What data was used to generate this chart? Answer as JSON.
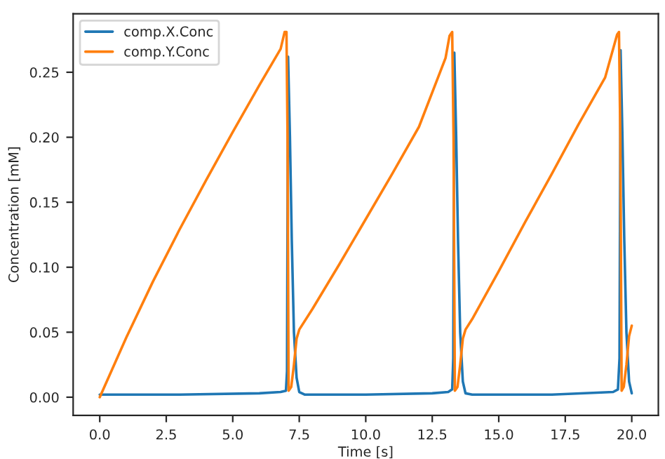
{
  "chart_data": {
    "type": "line",
    "xlabel": "Time [s]",
    "ylabel": "Concentration [mM]",
    "xlim": [
      -1,
      21
    ],
    "ylim": [
      -0.014,
      0.295
    ],
    "xticks": [
      {
        "value": 0,
        "label": "0.0"
      },
      2.5,
      {
        "value": 5,
        "label": "5.0"
      },
      7.5,
      {
        "value": 10,
        "label": "10.0"
      },
      12.5,
      {
        "value": 15,
        "label": "15.0"
      },
      17.5,
      {
        "value": 20,
        "label": "20.0"
      }
    ],
    "yticks": [
      {
        "value": 0,
        "label": "0.00"
      },
      0.05,
      {
        "value": 0.1,
        "label": "0.10"
      },
      0.15,
      {
        "value": 0.2,
        "label": "0.20"
      },
      0.25
    ],
    "grid": false,
    "legend": "top left",
    "series": [
      {
        "name": "comp.X.Conc",
        "color": "#1f77b4",
        "x": [
          0,
          0.1,
          3,
          6,
          6.8,
          7.0,
          7.04,
          7.08,
          7.15,
          7.22,
          7.3,
          7.4,
          7.5,
          7.7,
          10,
          12.5,
          13.1,
          13.25,
          13.29,
          13.33,
          13.4,
          13.47,
          13.55,
          13.65,
          13.75,
          14,
          17,
          19.3,
          19.48,
          19.54,
          19.58,
          19.65,
          19.72,
          19.8,
          19.9,
          20.0
        ],
        "values": [
          0.002,
          0.002,
          0.002,
          0.003,
          0.004,
          0.005,
          0.02,
          0.262,
          0.2,
          0.12,
          0.05,
          0.015,
          0.004,
          0.002,
          0.002,
          0.003,
          0.004,
          0.006,
          0.03,
          0.265,
          0.2,
          0.12,
          0.05,
          0.012,
          0.003,
          0.002,
          0.002,
          0.004,
          0.006,
          0.03,
          0.267,
          0.2,
          0.12,
          0.05,
          0.012,
          0.003
        ]
      },
      {
        "name": "comp.Y.Conc",
        "color": "#ff7f0e",
        "x": [
          0,
          1,
          2,
          3,
          4,
          5,
          6,
          6.8,
          6.95,
          7.02,
          7.06,
          7.1,
          7.2,
          7.3,
          7.4,
          7.5,
          8,
          9,
          10,
          11,
          12,
          13,
          13.15,
          13.25,
          13.3,
          13.35,
          13.45,
          13.55,
          13.65,
          13.75,
          14,
          15,
          16,
          17,
          18,
          19,
          19.45,
          19.52,
          19.57,
          19.62,
          19.7,
          19.8,
          19.9,
          20.0
        ],
        "values": [
          0,
          0.046,
          0.089,
          0.129,
          0.167,
          0.204,
          0.24,
          0.268,
          0.281,
          0.281,
          0.2,
          0.005,
          0.008,
          0.025,
          0.045,
          0.052,
          0.068,
          0.102,
          0.137,
          0.172,
          0.208,
          0.261,
          0.278,
          0.281,
          0.2,
          0.005,
          0.008,
          0.025,
          0.045,
          0.052,
          0.06,
          0.097,
          0.135,
          0.172,
          0.21,
          0.246,
          0.279,
          0.281,
          0.2,
          0.005,
          0.008,
          0.025,
          0.047,
          0.055
        ]
      }
    ]
  }
}
